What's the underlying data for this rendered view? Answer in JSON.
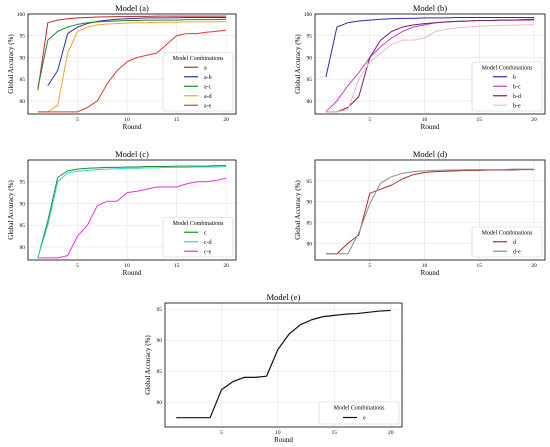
{
  "chart_data": [
    {
      "type": "line",
      "title": "Model (a)",
      "xlabel": "Round",
      "ylabel": "Global Accuracy (%)",
      "xlim": [
        0,
        21
      ],
      "ylim": [
        77,
        100
      ],
      "xticks": [
        5,
        10,
        15,
        20
      ],
      "yticks": [
        80,
        85,
        90,
        95,
        100
      ],
      "grid": true,
      "legend_position": "bottom-right",
      "legend_title": "Model Combinations",
      "series": [
        {
          "name": "a",
          "color": "#c0282d",
          "x": [
            1,
            2,
            3,
            4,
            5,
            6,
            7,
            8,
            9,
            10,
            11,
            12,
            13,
            14,
            15,
            16,
            17,
            18,
            19,
            20
          ],
          "y": [
            82.5,
            98.0,
            98.6,
            98.9,
            99.1,
            99.2,
            99.3,
            99.35,
            99.4,
            99.4,
            99.45,
            99.45,
            99.5,
            99.5,
            99.5,
            99.5,
            99.5,
            99.5,
            99.5,
            99.5
          ]
        },
        {
          "name": "a-b",
          "color": "#2b2bb8",
          "x": [
            2,
            3,
            4,
            5,
            6,
            7,
            8,
            9,
            10,
            11,
            12,
            13,
            14,
            15,
            16,
            17,
            18,
            19,
            20
          ],
          "y": [
            83.5,
            87.0,
            95.5,
            97.0,
            97.8,
            98.3,
            98.6,
            98.8,
            98.9,
            99.0,
            99.1,
            99.1,
            99.1,
            99.15,
            99.2,
            99.2,
            99.2,
            99.2,
            99.2
          ]
        },
        {
          "name": "a-c",
          "color": "#1f8a2e",
          "x": [
            1,
            2,
            3,
            4,
            5,
            6,
            7,
            8,
            9,
            10,
            11,
            12,
            13,
            14,
            15,
            16,
            17,
            18,
            19,
            20
          ],
          "y": [
            83.0,
            94.0,
            96.0,
            97.0,
            97.6,
            98.0,
            98.2,
            98.3,
            98.4,
            98.5,
            98.5,
            98.6,
            98.6,
            98.6,
            98.6,
            98.7,
            98.7,
            98.7,
            98.7,
            98.8
          ]
        },
        {
          "name": "a-d",
          "color": "#f4a52a",
          "x": [
            1,
            2,
            3,
            4,
            5,
            6,
            7,
            8,
            9,
            10,
            11,
            12,
            13,
            14,
            15,
            16,
            17,
            18,
            19,
            20
          ],
          "y": [
            77.5,
            77.5,
            79.0,
            91.0,
            96.0,
            97.0,
            97.5,
            97.7,
            97.8,
            97.9,
            98.0,
            98.0,
            98.1,
            98.1,
            98.1,
            98.2,
            98.2,
            98.2,
            98.2,
            98.3
          ]
        },
        {
          "name": "a-e",
          "color": "#e8392c",
          "x": [
            1,
            2,
            3,
            4,
            5,
            6,
            7,
            8,
            9,
            10,
            11,
            12,
            13,
            14,
            15,
            16,
            17,
            18,
            19,
            20
          ],
          "y": [
            77.5,
            77.5,
            77.5,
            77.5,
            77.5,
            78.5,
            80.0,
            84.0,
            87.0,
            89.0,
            90.0,
            90.5,
            91.0,
            93.0,
            95.0,
            95.5,
            95.5,
            95.8,
            96.0,
            96.3
          ]
        }
      ]
    },
    {
      "type": "line",
      "title": "Model (b)",
      "xlabel": "Round",
      "ylabel": "Global Accuracy (%)",
      "xlim": [
        0,
        21
      ],
      "ylim": [
        77,
        100
      ],
      "xticks": [
        5,
        10,
        15,
        20
      ],
      "yticks": [
        80,
        85,
        90,
        95,
        100
      ],
      "grid": true,
      "legend_position": "bottom-right",
      "legend_title": "Model Combinations",
      "series": [
        {
          "name": "b",
          "color": "#2b2bb8",
          "x": [
            1,
            2,
            3,
            4,
            5,
            6,
            7,
            8,
            9,
            10,
            11,
            12,
            13,
            14,
            15,
            16,
            17,
            18,
            19,
            20
          ],
          "y": [
            85.5,
            97.0,
            98.0,
            98.4,
            98.6,
            98.8,
            98.9,
            99.0,
            99.0,
            99.1,
            99.1,
            99.1,
            99.2,
            99.2,
            99.2,
            99.2,
            99.2,
            99.2,
            99.2,
            99.2
          ]
        },
        {
          "name": "b-c",
          "color": "#c43ccf",
          "x": [
            1,
            2,
            3,
            4,
            5,
            6,
            7,
            8,
            9,
            10,
            11,
            12,
            13,
            14,
            15,
            16,
            17,
            18,
            19,
            20
          ],
          "y": [
            77.5,
            80.0,
            83.5,
            86.5,
            90.0,
            92.5,
            94.5,
            96.0,
            97.0,
            97.5,
            98.0,
            98.2,
            98.3,
            98.4,
            98.5,
            98.5,
            98.6,
            98.6,
            98.6,
            98.6
          ]
        },
        {
          "name": "b-d",
          "color": "#7a1f5c",
          "x": [
            1,
            2,
            3,
            4,
            5,
            6,
            7,
            8,
            9,
            10,
            11,
            12,
            13,
            14,
            15,
            16,
            17,
            18,
            19,
            20
          ],
          "y": [
            77.5,
            77.5,
            78.5,
            81.0,
            90.0,
            94.0,
            96.0,
            97.0,
            97.5,
            97.8,
            98.0,
            98.2,
            98.3,
            98.4,
            98.5,
            98.5,
            98.6,
            98.6,
            98.7,
            98.8
          ]
        },
        {
          "name": "b-e",
          "color": "#f6b6c6",
          "x": [
            1,
            2,
            3,
            4,
            5,
            6,
            7,
            8,
            9,
            10,
            11,
            12,
            13,
            14,
            15,
            16,
            17,
            18,
            19,
            20
          ],
          "y": [
            77.5,
            77.5,
            78.0,
            85.0,
            89.0,
            91.0,
            93.0,
            94.0,
            94.0,
            94.5,
            96.0,
            96.5,
            96.8,
            97.0,
            97.2,
            97.3,
            97.4,
            97.4,
            97.5,
            97.5
          ]
        }
      ]
    },
    {
      "type": "line",
      "title": "Model (c)",
      "xlabel": "Round",
      "ylabel": "Global Accuracy (%)",
      "xlim": [
        0,
        21
      ],
      "ylim": [
        77,
        100
      ],
      "xticks": [
        5,
        10,
        15,
        20
      ],
      "yticks": [
        80,
        85,
        90,
        95
      ],
      "grid": true,
      "legend_position": "bottom-right",
      "legend_title": "Model Combinations",
      "series": [
        {
          "name": "c",
          "color": "#1f8a2e",
          "x": [
            1,
            2,
            3,
            4,
            5,
            6,
            7,
            8,
            9,
            10,
            11,
            12,
            13,
            14,
            15,
            16,
            17,
            18,
            19,
            20
          ],
          "y": [
            77.5,
            86.0,
            96.0,
            97.5,
            97.9,
            98.1,
            98.2,
            98.3,
            98.3,
            98.4,
            98.4,
            98.5,
            98.5,
            98.5,
            98.6,
            98.6,
            98.6,
            98.6,
            98.7,
            98.7
          ]
        },
        {
          "name": "c-d",
          "color": "#2ad8d0",
          "x": [
            1,
            2,
            3,
            4,
            5,
            6,
            7,
            8,
            9,
            10,
            11,
            12,
            13,
            14,
            15,
            16,
            17,
            18,
            19,
            20
          ],
          "y": [
            77.5,
            85.0,
            95.0,
            97.0,
            97.4,
            97.6,
            97.8,
            97.9,
            98.0,
            98.1,
            98.1,
            98.2,
            98.2,
            98.3,
            98.3,
            98.3,
            98.4,
            98.4,
            98.4,
            98.5
          ]
        },
        {
          "name": "c-e",
          "color": "#ea2ee8",
          "x": [
            1,
            2,
            3,
            4,
            5,
            6,
            7,
            8,
            9,
            10,
            11,
            12,
            13,
            14,
            15,
            16,
            17,
            18,
            19,
            20
          ],
          "y": [
            77.5,
            77.5,
            77.5,
            78.0,
            82.5,
            85.0,
            89.5,
            90.5,
            90.5,
            92.5,
            92.8,
            93.3,
            93.8,
            93.8,
            93.8,
            94.5,
            95.0,
            95.0,
            95.3,
            95.8
          ]
        }
      ]
    },
    {
      "type": "line",
      "title": "Model (d)",
      "xlabel": "Round",
      "ylabel": "Global Accuracy (%)",
      "xlim": [
        0,
        21
      ],
      "ylim": [
        76,
        100
      ],
      "xticks": [
        5,
        10,
        15,
        20
      ],
      "yticks": [
        80,
        85,
        90,
        95
      ],
      "grid": true,
      "legend_position": "bottom-right",
      "legend_title": "Model Combinations",
      "series": [
        {
          "name": "d",
          "color": "#a8322c",
          "x": [
            1,
            2,
            3,
            4,
            5,
            6,
            7,
            8,
            9,
            10,
            11,
            12,
            13,
            14,
            15,
            16,
            17,
            18,
            19,
            20
          ],
          "y": [
            77.5,
            77.5,
            80.0,
            82.0,
            92.0,
            93.0,
            94.0,
            95.5,
            96.5,
            97.0,
            97.2,
            97.3,
            97.4,
            97.5,
            97.5,
            97.6,
            97.6,
            97.6,
            97.7,
            97.7
          ]
        },
        {
          "name": "d-e",
          "color": "#8c8c8c",
          "x": [
            1,
            2,
            3,
            4,
            5,
            6,
            7,
            8,
            9,
            10,
            11,
            12,
            13,
            14,
            15,
            16,
            17,
            18,
            19,
            20
          ],
          "y": [
            77.5,
            77.5,
            77.5,
            82.5,
            89.5,
            94.5,
            96.0,
            96.8,
            97.2,
            97.4,
            97.5,
            97.6,
            97.6,
            97.7,
            97.7,
            97.7,
            97.7,
            97.8,
            97.8,
            97.8
          ]
        }
      ]
    },
    {
      "type": "line",
      "title": "Model (e)",
      "xlabel": "Round",
      "ylabel": "Global Accuracy (%)",
      "xlim": [
        0,
        21
      ],
      "ylim": [
        76,
        96
      ],
      "xticks": [
        5,
        10,
        15,
        20
      ],
      "yticks": [
        80,
        85,
        90,
        95
      ],
      "grid": true,
      "legend_position": "bottom-right",
      "legend_title": "Model Combinations",
      "series": [
        {
          "name": "e",
          "color": "#111111",
          "x": [
            1,
            2,
            3,
            4,
            5,
            6,
            7,
            8,
            9,
            10,
            11,
            12,
            13,
            14,
            15,
            16,
            17,
            18,
            19,
            20
          ],
          "y": [
            77.5,
            77.5,
            77.5,
            77.5,
            82.0,
            83.3,
            84.0,
            84.0,
            84.2,
            88.5,
            91.0,
            92.5,
            93.3,
            93.8,
            94.0,
            94.2,
            94.3,
            94.5,
            94.7,
            94.8
          ]
        }
      ]
    }
  ]
}
